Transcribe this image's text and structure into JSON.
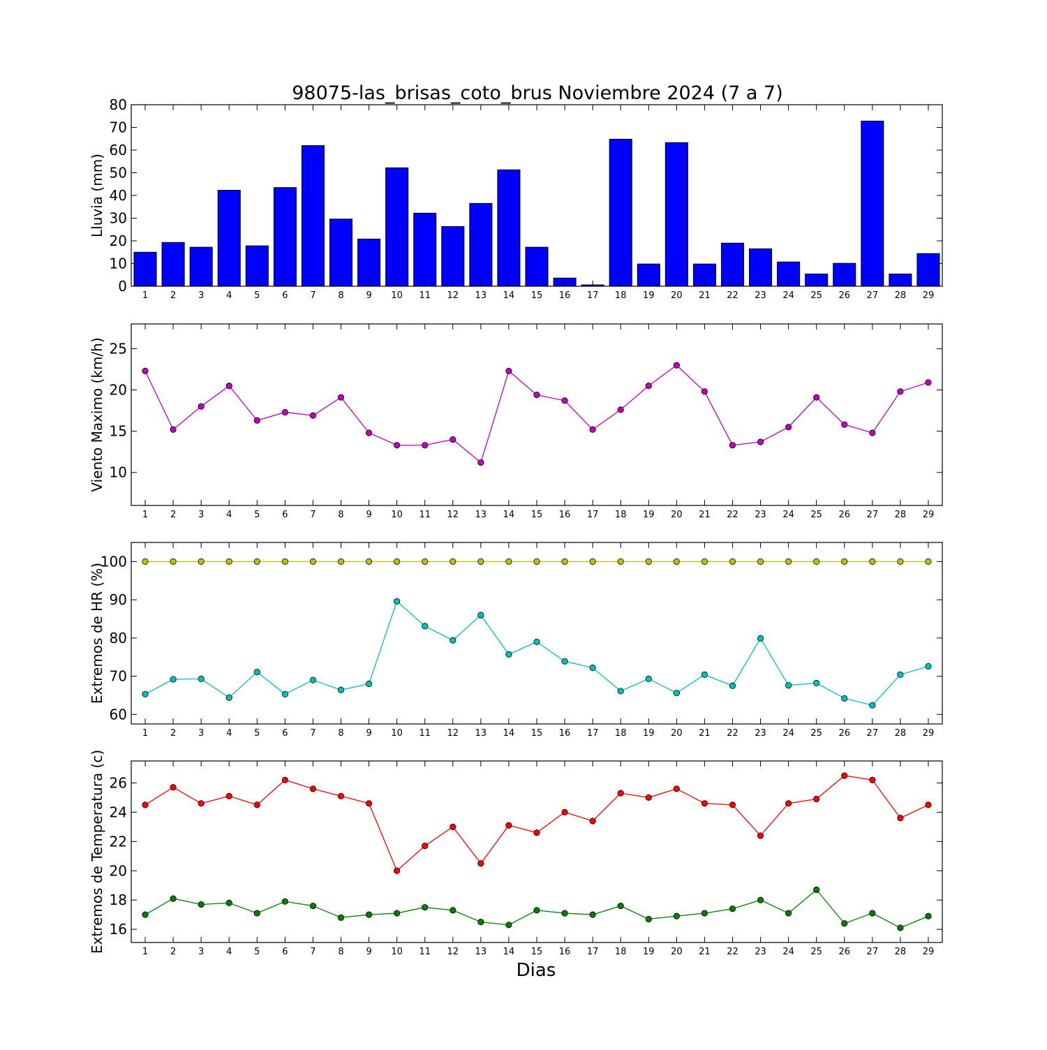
{
  "figure": {
    "title": "98075-las_brisas_coto_brus Noviembre 2024  (7 a 7)",
    "xlabel": "Dias"
  },
  "chart_data": [
    {
      "type": "bar",
      "ylabel": "Lluvia (mm)",
      "ylim": [
        0,
        80
      ],
      "yticks": [
        0,
        10,
        20,
        30,
        40,
        50,
        60,
        70,
        80
      ],
      "xlim": [
        0.5,
        29.5
      ],
      "categories": [
        "1",
        "2",
        "3",
        "4",
        "5",
        "6",
        "7",
        "8",
        "9",
        "10",
        "11",
        "12",
        "13",
        "14",
        "15",
        "16",
        "17",
        "18",
        "19",
        "20",
        "21",
        "22",
        "23",
        "24",
        "25",
        "26",
        "27",
        "28",
        "29"
      ],
      "series": [
        {
          "color": "#0000ff",
          "values": [
            15,
            19.3,
            17.2,
            42.3,
            17.8,
            43.5,
            62,
            29.6,
            20.8,
            52.2,
            32.2,
            26.3,
            36.5,
            51.3,
            17.2,
            3.6,
            0.6,
            64.8,
            9.8,
            63.3,
            9.8,
            19,
            16.5,
            10.7,
            5.4,
            10.1,
            72.8,
            5.4,
            14.4
          ]
        }
      ]
    },
    {
      "type": "line",
      "ylabel": "Viento Maximo (km/h)",
      "ylim": [
        6,
        28
      ],
      "yticks": [
        10,
        15,
        20,
        25
      ],
      "xlim": [
        0.5,
        29.5
      ],
      "x": [
        1,
        2,
        3,
        4,
        5,
        6,
        7,
        8,
        9,
        10,
        11,
        12,
        13,
        14,
        15,
        16,
        17,
        18,
        19,
        20,
        21,
        22,
        23,
        24,
        25,
        26,
        27,
        28,
        29
      ],
      "series": [
        {
          "color": "#bf00bf",
          "values": [
            22.3,
            15.2,
            18,
            20.5,
            16.3,
            17.3,
            16.9,
            19.1,
            14.8,
            13.3,
            13.3,
            14,
            11.2,
            22.3,
            19.4,
            18.7,
            15.2,
            17.6,
            20.5,
            23,
            19.8,
            13.3,
            13.7,
            15.5,
            19.1,
            15.8,
            14.8,
            19.8,
            20.9
          ]
        }
      ]
    },
    {
      "type": "line",
      "ylabel": "Extremos de HR (%)",
      "ylim": [
        57.5,
        105
      ],
      "yticks": [
        60,
        70,
        80,
        90,
        100
      ],
      "xlim": [
        0.5,
        29.5
      ],
      "x": [
        1,
        2,
        3,
        4,
        5,
        6,
        7,
        8,
        9,
        10,
        11,
        12,
        13,
        14,
        15,
        16,
        17,
        18,
        19,
        20,
        21,
        22,
        23,
        24,
        25,
        26,
        27,
        28,
        29
      ],
      "series": [
        {
          "color": "#bfbf00",
          "values": [
            100,
            100,
            100,
            100,
            100,
            100,
            100,
            100,
            100,
            100,
            100,
            100,
            100,
            100,
            100,
            100,
            100,
            100,
            100,
            100,
            100,
            100,
            100,
            100,
            100,
            100,
            100,
            100,
            100
          ]
        },
        {
          "color": "#00bfbf",
          "values": [
            65.3,
            69.2,
            69.3,
            64.4,
            71.1,
            65.3,
            69,
            66.4,
            68,
            89.6,
            83.1,
            79.4,
            86,
            75.7,
            79,
            73.9,
            72.2,
            66.1,
            69.3,
            65.6,
            70.4,
            67.5,
            79.9,
            67.6,
            68.2,
            64.2,
            62.4,
            70.4,
            72.6
          ]
        }
      ]
    },
    {
      "type": "line",
      "ylabel": "Extremos de Temperatura (c)",
      "ylim": [
        15.1,
        27.5
      ],
      "yticks": [
        16,
        18,
        20,
        22,
        24,
        26
      ],
      "xlim": [
        0.5,
        29.5
      ],
      "x": [
        1,
        2,
        3,
        4,
        5,
        6,
        7,
        8,
        9,
        10,
        11,
        12,
        13,
        14,
        15,
        16,
        17,
        18,
        19,
        20,
        21,
        22,
        23,
        24,
        25,
        26,
        27,
        28,
        29
      ],
      "series": [
        {
          "color": "#ff0000",
          "values": [
            24.5,
            25.7,
            24.6,
            25.1,
            24.5,
            26.2,
            25.6,
            25.1,
            24.6,
            20,
            21.7,
            23,
            20.5,
            23.1,
            22.6,
            24,
            23.4,
            25.3,
            25,
            25.6,
            24.6,
            24.5,
            22.4,
            24.6,
            24.9,
            26.5,
            26.2,
            23.6,
            24.5
          ]
        },
        {
          "color": "#008000",
          "values": [
            17,
            18.1,
            17.7,
            17.8,
            17.1,
            17.9,
            17.6,
            16.8,
            17,
            17.1,
            17.5,
            17.3,
            16.5,
            16.3,
            17.3,
            17.1,
            17,
            17.6,
            16.7,
            16.9,
            17.1,
            17.4,
            18,
            17.1,
            18.7,
            16.4,
            17.1,
            16.1,
            16.9
          ]
        }
      ]
    }
  ]
}
